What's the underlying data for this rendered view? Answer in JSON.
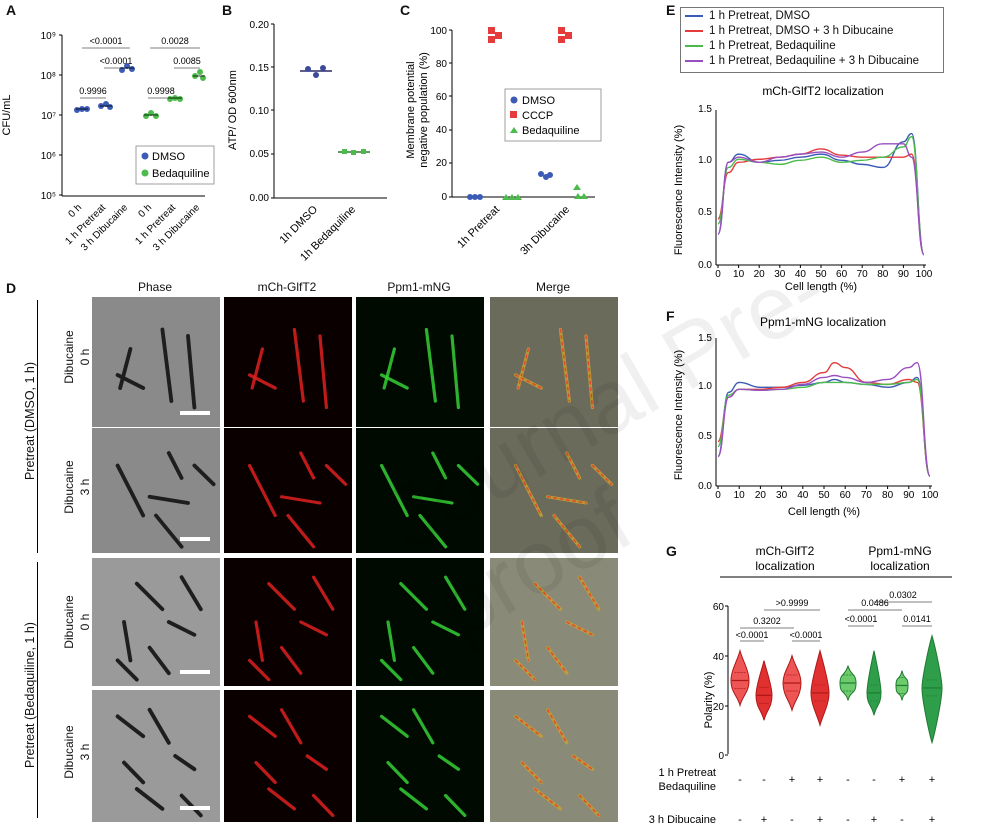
{
  "panel_labels": [
    "A",
    "B",
    "C",
    "D",
    "E",
    "F",
    "G"
  ],
  "watermark": "Journal Pre-proof",
  "panelA": {
    "ylabel": "CFU/mL",
    "yticks": [
      "10⁵",
      "10⁶",
      "10⁷",
      "10⁸",
      "10⁹"
    ],
    "xticks": [
      "0 h",
      "1 h Pretreat",
      "3 h Dibucaine",
      "0 h",
      "1 h Pretreat",
      "3 h Dibucaine"
    ],
    "brackets": [
      "<0.0001",
      "<0.0001",
      "0.9996",
      "0.0028",
      "0.0085",
      "0.9998"
    ],
    "legend": [
      "DMSO",
      "Bedaquiline"
    ],
    "colors": {
      "dmso": "#3b5bb5",
      "beda": "#4cbb4c"
    }
  },
  "panelB": {
    "ylabel": "ATP/ OD 600nm",
    "yticks": [
      "0.00",
      "0.05",
      "0.10",
      "0.15",
      "0.20"
    ],
    "xticks": [
      "1h DMSO",
      "1h Bedaquiline"
    ]
  },
  "panelC": {
    "ylabel_1": "Membrane potential",
    "ylabel_2": "negative population (%)",
    "yticks": [
      "0",
      "20",
      "40",
      "60",
      "80",
      "100"
    ],
    "xticks": [
      "1h Pretreat",
      "3h Dibucaine"
    ],
    "legend": [
      "DMSO",
      "CCCP",
      "Bedaquiline"
    ],
    "colors": {
      "dmso": "#3b5bb5",
      "cccp": "#e43b3b",
      "beda": "#4cbb4c"
    }
  },
  "panelD": {
    "headers": [
      "Phase",
      "mCh-GlfT2",
      "Ppm1-mNG",
      "Merge"
    ],
    "row_labels": [
      "Dibucaine",
      "0 h",
      "Dibucaine",
      "3 h",
      "Dibucaine",
      "0 h",
      "Dibucaine",
      "3 h"
    ],
    "group_labels": [
      "Pretreat (DMSO, 1 h)",
      "Pretreat (Bedaquiline, 1 h)"
    ]
  },
  "panelE": {
    "title": "mCh-GlfT2 localization",
    "ylabel": "Fluorescence Intensity (%)",
    "xlabel": "Cell length (%)",
    "yticks": [
      "0.0",
      "0.5",
      "1.0",
      "1.5"
    ],
    "xticks": [
      "0",
      "10",
      "20",
      "30",
      "40",
      "50",
      "60",
      "70",
      "80",
      "90",
      "100"
    ],
    "legend": [
      "1 h Pretreat, DMSO",
      "1 h Pretreat, DMSO + 3 h Dibucaine",
      "1 h Pretreat, Bedaquiline",
      "1 h Pretreat, Bedaquiline + 3 h Dibucaine"
    ],
    "colors": [
      "#3b5bb5",
      "#e43b3b",
      "#4cbb4c",
      "#9a4fc0"
    ]
  },
  "panelF": {
    "title": "Ppm1-mNG localization",
    "ylabel": "Fluorescence Intensity (%)",
    "xlabel": "Cell length (%)",
    "yticks": [
      "0.0",
      "0.5",
      "1.0",
      "1.5"
    ],
    "xticks": [
      "0",
      "10",
      "20",
      "30",
      "40",
      "50",
      "60",
      "70",
      "80",
      "90",
      "100"
    ]
  },
  "panelG": {
    "group1_1": "mCh-GlfT2",
    "group1_2": "localization",
    "group2_1": "Ppm1-mNG",
    "group2_2": "localization",
    "ylabel": "Polarity (%)",
    "yticks": [
      "0",
      "20",
      "40",
      "60"
    ],
    "pvals": [
      "0.3202",
      "<0.0001",
      ">0.9999",
      "<0.0001",
      "0.0486",
      "<0.0001",
      "0.0302",
      "0.0141"
    ],
    "row1_label_1": "1 h Pretreat",
    "row1_label_2": "Bedaquiline",
    "row2_label": "3 h Dibucaine",
    "row1": [
      "-",
      "-",
      "+",
      "+",
      "-",
      "-",
      "+",
      "+"
    ],
    "row2": [
      "-",
      "+",
      "-",
      "+",
      "-",
      "+",
      "-",
      "+"
    ]
  },
  "chart_data": [
    {
      "type": "scatter",
      "panel": "A",
      "ylabel": "CFU/mL",
      "yscale": "log",
      "ylim": [
        100000,
        1000000000
      ],
      "categories": [
        "0 h",
        "1 h Pretreat",
        "3 h Dibucaine",
        "0 h",
        "1 h Pretreat",
        "3 h Dibucaine"
      ],
      "series": [
        {
          "name": "DMSO",
          "values": [
            18000000,
            22000000,
            200000000
          ]
        },
        {
          "name": "Bedaquiline",
          "values": [
            12000000,
            32000000,
            110000000
          ]
        }
      ]
    },
    {
      "type": "scatter",
      "panel": "B",
      "ylabel": "ATP/ OD 600nm",
      "ylim": [
        0,
        0.2
      ],
      "categories": [
        "1h DMSO",
        "1h Bedaquiline"
      ],
      "values": [
        0.147,
        0.053
      ]
    },
    {
      "type": "scatter",
      "panel": "C",
      "ylim": [
        0,
        100
      ],
      "categories": [
        "1h Pretreat",
        "3h Dibucaine"
      ],
      "series": [
        {
          "name": "DMSO",
          "values": [
            0,
            12
          ]
        },
        {
          "name": "CCCP",
          "values": [
            98,
            98
          ]
        },
        {
          "name": "Bedaquiline",
          "values": [
            0,
            3
          ]
        }
      ]
    },
    {
      "type": "line",
      "panel": "E",
      "title": "mCh-GlfT2 localization",
      "ylim": [
        0,
        1.5
      ],
      "x": [
        0,
        5,
        10,
        20,
        30,
        40,
        50,
        60,
        70,
        80,
        90,
        94,
        100
      ],
      "series": [
        {
          "name": "1 h Pretreat, DMSO",
          "values": [
            0.3,
            1.0,
            1.08,
            1.0,
            1.02,
            1.05,
            1.08,
            1.02,
            0.98,
            0.95,
            1.2,
            1.28,
            0.1
          ]
        },
        {
          "name": "1 h Pretreat, DMSO + 3 h Dibucaine",
          "values": [
            0.45,
            0.9,
            1.0,
            1.03,
            1.05,
            1.08,
            1.13,
            1.07,
            1.05,
            1.05,
            1.05,
            1.08,
            0.1
          ]
        },
        {
          "name": "1 h Pretreat, Bedaquiline",
          "values": [
            0.4,
            0.95,
            1.03,
            1.0,
            0.98,
            1.02,
            1.05,
            1.0,
            1.02,
            1.05,
            1.15,
            1.25,
            0.1
          ]
        },
        {
          "name": "1 h Pretreat, Bedaquiline + 3 h Dibucaine",
          "values": [
            0.3,
            1.0,
            1.05,
            1.0,
            1.05,
            1.08,
            1.1,
            1.05,
            1.1,
            1.18,
            1.18,
            1.05,
            0.1
          ]
        }
      ]
    },
    {
      "type": "line",
      "panel": "F",
      "title": "Ppm1-mNG localization",
      "ylim": [
        0,
        1.5
      ],
      "x": [
        0,
        5,
        10,
        20,
        30,
        40,
        50,
        55,
        60,
        70,
        80,
        90,
        94,
        100
      ],
      "series": [
        {
          "name": "1 h Pretreat, DMSO",
          "values": [
            0.3,
            0.95,
            1.05,
            1.0,
            1.0,
            1.02,
            1.05,
            1.08,
            1.05,
            1.03,
            1.0,
            1.05,
            1.1,
            0.1
          ]
        },
        {
          "name": "1 h Pretreat, DMSO + 3 h Dibucaine",
          "values": [
            0.45,
            0.9,
            0.98,
            0.98,
            1.0,
            1.05,
            1.15,
            1.25,
            1.2,
            1.05,
            1.03,
            1.08,
            1.05,
            0.1
          ]
        },
        {
          "name": "1 h Pretreat, Bedaquiline",
          "values": [
            0.4,
            0.92,
            0.98,
            0.97,
            0.98,
            1.0,
            1.05,
            1.05,
            1.05,
            1.03,
            1.03,
            1.05,
            1.08,
            0.1
          ]
        },
        {
          "name": "1 h Pretreat, Bedaquiline + 3 h Dibucaine",
          "values": [
            0.3,
            0.9,
            0.98,
            0.97,
            0.98,
            1.03,
            1.1,
            1.12,
            1.1,
            1.05,
            1.08,
            1.2,
            1.25,
            0.1
          ]
        }
      ]
    },
    {
      "type": "violin",
      "panel": "G",
      "ylabel": "Polarity (%)",
      "ylim": [
        0,
        60
      ],
      "series": [
        {
          "name": "mCh-GlfT2 localization",
          "medians": [
            30,
            24,
            29,
            25
          ]
        },
        {
          "name": "Ppm1-mNG localization",
          "medians": [
            29,
            25,
            28,
            27
          ]
        }
      ]
    }
  ]
}
